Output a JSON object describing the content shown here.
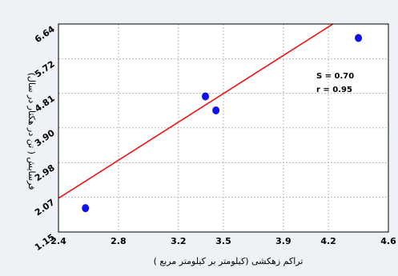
{
  "chart_data": {
    "type": "scatter",
    "title": "",
    "xlabel": "تراکم زهکشی (کیلومتر بر کیلومتر مربع )",
    "ylabel": "فرسایش ( تن در هکتار در سال)",
    "xlim": [
      2.4,
      4.6
    ],
    "ylim": [
      1.15,
      6.64
    ],
    "x_ticks": [
      "2.4",
      "2.8",
      "3.2",
      "3.5",
      "3.9",
      "4.2",
      "4.6"
    ],
    "x_tick_values": [
      2.4,
      2.8,
      3.2,
      3.5,
      3.9,
      4.2,
      4.6
    ],
    "y_ticks": [
      "1.15",
      "2.07",
      "2.98",
      "3.90",
      "4.81",
      "5.72",
      "6.64"
    ],
    "y_tick_values": [
      1.15,
      2.07,
      2.98,
      3.9,
      4.81,
      5.72,
      6.64
    ],
    "grid": true,
    "series": [
      {
        "points": [
          {
            "x": 2.58,
            "y": 1.78
          },
          {
            "x": 3.38,
            "y": 4.73
          },
          {
            "x": 3.45,
            "y": 4.36
          },
          {
            "x": 4.4,
            "y": 6.27
          }
        ],
        "color": "#1010ee"
      }
    ],
    "fit_line": {
      "color": "#ee1111",
      "x": [
        2.4,
        4.27
      ],
      "y": [
        2.04,
        6.74
      ]
    },
    "annotations": [
      "S = 0.70",
      "r = 0.95"
    ]
  }
}
